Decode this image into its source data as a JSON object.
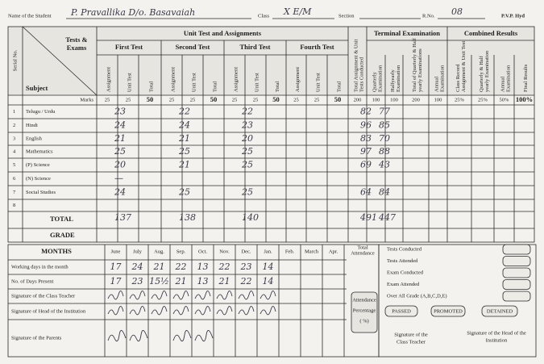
{
  "header": {
    "name_label": "Name of the Student",
    "name": "P. Pravallika D/o. Basavaiah",
    "class_label": "Class",
    "class": "X E/M",
    "section_label": "Section",
    "rno_label": "R.No.",
    "rno": "08",
    "school": "P.V.P. Hyd"
  },
  "table": {
    "serial_label": "Serial No.",
    "tests_label": [
      "Tests &",
      "Exams"
    ],
    "subject_label": "Subject",
    "unit_group": "Unit Test and Assignments",
    "tests": [
      "First Test",
      "Second Test",
      "Third Test",
      "Fourth Test"
    ],
    "test_columns": [
      "Assignment",
      "Unit Test",
      "Total"
    ],
    "total_conducted": [
      "Total Assignment & Unit",
      "Tests Conducted"
    ],
    "terminal_group": "Terminal Examination",
    "terminal_columns": [
      [
        "Quarterly",
        "Examination"
      ],
      [
        "Halfyearly",
        "Examination"
      ],
      [
        "Total of Quarterly & Half",
        "yearly Examinations"
      ],
      [
        "Annual",
        "Examination"
      ]
    ],
    "combined_group": "Combined Results",
    "combined_columns": [
      [
        "Class Record",
        "Assignment & Unit Test"
      ],
      [
        "Quarterly & Half",
        "yearly Examination"
      ],
      [
        "Annual",
        "Examination"
      ],
      [
        "Final Results"
      ]
    ],
    "marks_label": "Marks",
    "marks": [
      25,
      25,
      50,
      25,
      25,
      50,
      25,
      25,
      50,
      25,
      25,
      50,
      200,
      100,
      100,
      200,
      100,
      "25%",
      "25%",
      "50%",
      "100%"
    ],
    "rows": [
      {
        "serial": 1,
        "subject": "Telugu / Urdu",
        "first_test": 23,
        "second_test": 22,
        "third_test": 22,
        "quarterly": 82,
        "halfyearly": 77
      },
      {
        "serial": 2,
        "subject": "Hindi",
        "first_test": 24,
        "second_test": 24,
        "third_test": 23,
        "quarterly": 96,
        "halfyearly": 85
      },
      {
        "serial": 3,
        "subject": "English",
        "first_test": 21,
        "second_test": 21,
        "third_test": 20,
        "quarterly": 83,
        "halfyearly": 70
      },
      {
        "serial": 4,
        "subject": "Mathematics",
        "first_test": 25,
        "second_test": 25,
        "third_test": 25,
        "quarterly": 97,
        "halfyearly": 88
      },
      {
        "serial": 5,
        "subject": "(P)   Science",
        "first_test": 20,
        "second_test": 21,
        "third_test": 25,
        "quarterly": 69,
        "halfyearly": 43
      },
      {
        "serial": 6,
        "subject": "(N)   Science",
        "first_test": "—"
      },
      {
        "serial": 7,
        "subject": "Social Studies",
        "first_test": 24,
        "second_test": 25,
        "third_test": 25,
        "quarterly": 64,
        "halfyearly": 84
      },
      {
        "serial": 8
      }
    ],
    "total": {
      "label": "TOTAL",
      "first_test": 137,
      "second_test": 138,
      "third_test": 140,
      "quarterly": 491,
      "halfyearly": 447
    },
    "grade_label": "GRADE"
  },
  "attendance": {
    "months_label": "MONTHS",
    "months": [
      "June",
      "July",
      "Aug.",
      "Sep.",
      "Oct.",
      "Nov.",
      "Dec.",
      "Jan.",
      "Feb.",
      "March",
      "Apr."
    ],
    "total_label": [
      "Total",
      "Attendance"
    ],
    "working_label": "Working days in the month",
    "working": [
      17,
      24,
      21,
      22,
      13,
      22,
      23,
      14
    ],
    "present_label": "No. of Days Present",
    "present": [
      17,
      23,
      "15½",
      21,
      13,
      21,
      22,
      14
    ],
    "class_teacher_label": "Signature of the Class Teacher",
    "head_label": "Signature of Head of the Institution",
    "parents_label": "Signature of the Parents",
    "percentage": [
      "Attendance",
      "Percentage",
      "(     %)"
    ]
  },
  "summary": {
    "items": [
      "Tests Conducted",
      "Tests Attended",
      "Exam Conducted",
      "Exam Attended",
      "Over All Grade (A,B,C,D,E)"
    ],
    "status": [
      "PASSED",
      "PROMOTED",
      "DETAINED"
    ],
    "class_teacher_sig": [
      "Signature of the",
      "Class Teacher"
    ],
    "head_sig": [
      "Signature of the Head of the",
      "Institution"
    ]
  }
}
